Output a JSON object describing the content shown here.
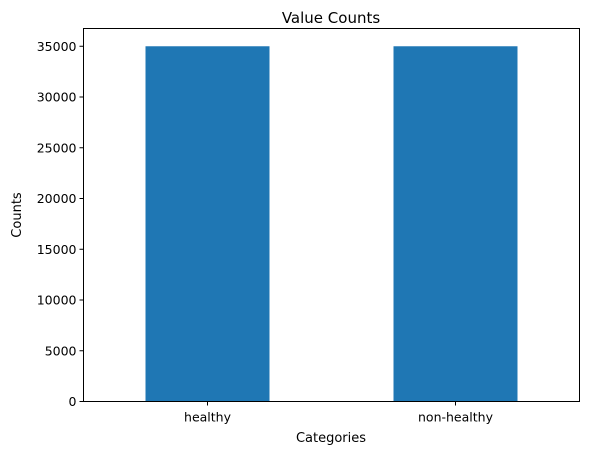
{
  "chart_data": {
    "type": "bar",
    "title": "Value Counts",
    "xlabel": "Categories",
    "ylabel": "Counts",
    "categories": [
      "healthy",
      "non-healthy"
    ],
    "values": [
      35000,
      35000
    ],
    "ylim": [
      0,
      36750
    ],
    "yticks": [
      0,
      5000,
      10000,
      15000,
      20000,
      25000,
      30000,
      35000
    ],
    "grid": false,
    "legend": "none",
    "bar_color": "#1f77b4"
  }
}
